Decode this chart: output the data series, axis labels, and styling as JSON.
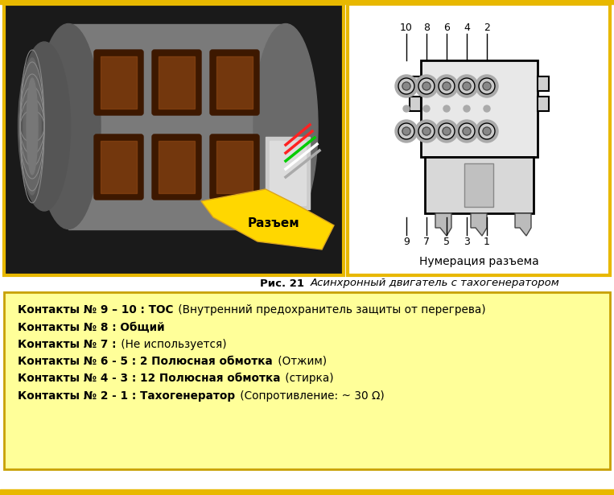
{
  "bg_color": "#ffffff",
  "top_border_yellow": "#E8B800",
  "bottom_bar_color": "#E8B800",
  "fig_caption_bold": "Рис. 21 ",
  "fig_caption_italic": "Асинхронный двигатель с тахогенератором",
  "info_box_bg": "#FFFF99",
  "info_box_border": "#C8A000",
  "info_lines": [
    {
      "bold_part": "Контакты № 9 – 10 : ТОС",
      "normal_part": " (Внутренний предохранитель защиты от перегрева)"
    },
    {
      "bold_part": "Контакты № 8 : Общий",
      "normal_part": ""
    },
    {
      "bold_part": "Контакты № 7 :",
      "normal_part": " (Не используется)"
    },
    {
      "bold_part": "Контакты № 6 - 5 : 2 Полюсная обмотка",
      "normal_part": " (Отжим)"
    },
    {
      "bold_part": "Контакты № 4 - 3 : 12 Полюсная обмотка",
      "normal_part": " (стирка)"
    },
    {
      "bold_part": "Контакты № 2 - 1 : Тахогенератор",
      "normal_part": " (Сопротивление: ~ 30 Ω)"
    }
  ],
  "connector_top_nums": [
    "10",
    "8",
    "6",
    "4",
    "2"
  ],
  "connector_bot_nums": [
    "9",
    "7",
    "5",
    "3",
    "1"
  ],
  "connector_label": "Нумерация разъема",
  "razem_label": "Разъем"
}
